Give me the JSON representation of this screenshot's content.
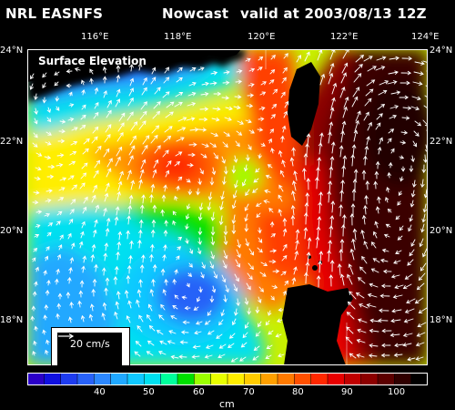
{
  "header": {
    "source": "NRL EASNFS",
    "product": "Nowcast",
    "valid": "valid at 2003/08/13 12Z"
  },
  "map": {
    "field_title": "Surface Elevation",
    "lon_labels": [
      "116°E",
      "118°E",
      "120°E",
      "122°E",
      "124°E"
    ],
    "lat_labels": [
      "24°N",
      "22°N",
      "20°N",
      "18°N"
    ],
    "vector_legend": "20 cm/s"
  },
  "colorbar": {
    "ticks": [
      "40",
      "50",
      "60",
      "70",
      "80",
      "90",
      "100"
    ],
    "unit": "cm",
    "colors": [
      "#2b00c8",
      "#1010e0",
      "#1e3cf0",
      "#2862f8",
      "#2c88ff",
      "#20a8ff",
      "#10c8ff",
      "#00e0f0",
      "#00ff9c",
      "#00e000",
      "#9cff00",
      "#e8ff00",
      "#ffee00",
      "#ffcc00",
      "#ffa000",
      "#ff7a00",
      "#ff5000",
      "#ff2800",
      "#e80000",
      "#c00000",
      "#8c0000",
      "#5c0000",
      "#300000",
      "#000000"
    ]
  },
  "colors": {
    "land": "#000000",
    "vectors": "#ffffff"
  }
}
